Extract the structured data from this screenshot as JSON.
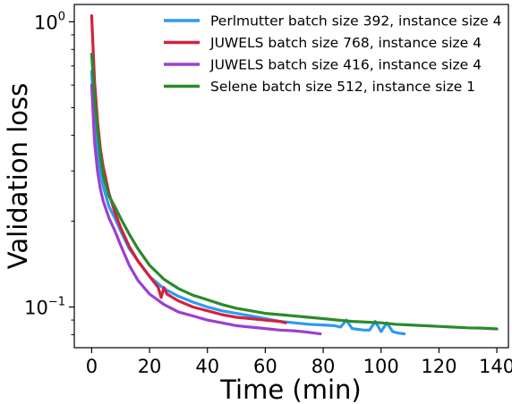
{
  "chart_data": {
    "type": "line",
    "xlabel": "Time (min)",
    "ylabel": "Validation loss",
    "yscale": "log",
    "xlim": [
      -6,
      144
    ],
    "ylim": [
      0.072,
      1.15
    ],
    "xticks": [
      0,
      20,
      40,
      60,
      80,
      100,
      120,
      140
    ],
    "xtick_labels": [
      "0",
      "20",
      "40",
      "60",
      "80",
      "100",
      "120",
      "140"
    ],
    "yticks": [
      {
        "value": 1,
        "base": "10",
        "exp": "0"
      },
      {
        "value": 0.1,
        "base": "10",
        "exp": "−1"
      }
    ],
    "grid": false,
    "legend_position": "top-right",
    "series": [
      {
        "name": "Perlmutter batch size 392, instance size 4",
        "color": "#2e9af0",
        "x": [
          0,
          1,
          2,
          3,
          4,
          6,
          8,
          10,
          13,
          16,
          20,
          25,
          30,
          35,
          40,
          45,
          50,
          55,
          60,
          65,
          70,
          75,
          80,
          84,
          86,
          88,
          90,
          92,
          94,
          96,
          98,
          100,
          102,
          104,
          106,
          108
        ],
        "y": [
          0.67,
          0.45,
          0.36,
          0.3,
          0.265,
          0.225,
          0.205,
          0.185,
          0.16,
          0.145,
          0.128,
          0.116,
          0.109,
          0.104,
          0.1,
          0.097,
          0.095,
          0.093,
          0.091,
          0.089,
          0.088,
          0.087,
          0.0865,
          0.086,
          0.085,
          0.09,
          0.084,
          0.0835,
          0.083,
          0.083,
          0.089,
          0.082,
          0.088,
          0.082,
          0.081,
          0.0805
        ]
      },
      {
        "name": "JUWELS batch size 768, instance size 4",
        "color": "#d3203e",
        "x": [
          0,
          1,
          2,
          3,
          4,
          6,
          8,
          10,
          13,
          16,
          20,
          23,
          24,
          25,
          26,
          30,
          35,
          40,
          45,
          50,
          55,
          60,
          65,
          67
        ],
        "y": [
          1.05,
          0.62,
          0.45,
          0.36,
          0.31,
          0.25,
          0.215,
          0.19,
          0.163,
          0.145,
          0.128,
          0.117,
          0.108,
          0.117,
          0.111,
          0.105,
          0.1,
          0.097,
          0.094,
          0.092,
          0.091,
          0.09,
          0.089,
          0.088
        ]
      },
      {
        "name": "JUWELS batch size 416, instance size 4",
        "color": "#9b40cf",
        "x": [
          0,
          1,
          2,
          3,
          4,
          6,
          8,
          10,
          13,
          16,
          20,
          25,
          30,
          35,
          40,
          45,
          50,
          55,
          60,
          65,
          70,
          75,
          79
        ],
        "y": [
          0.6,
          0.38,
          0.3,
          0.26,
          0.235,
          0.205,
          0.185,
          0.165,
          0.14,
          0.124,
          0.111,
          0.102,
          0.096,
          0.093,
          0.09,
          0.088,
          0.086,
          0.085,
          0.084,
          0.083,
          0.0825,
          0.0815,
          0.0805
        ]
      },
      {
        "name": "Selene batch size 512, instance size 1",
        "color": "#2b8a2b",
        "x": [
          0,
          1,
          2,
          3,
          4,
          6,
          8,
          10,
          13,
          16,
          20,
          25,
          30,
          35,
          40,
          45,
          50,
          55,
          60,
          65,
          70,
          75,
          80,
          85,
          90,
          95,
          100,
          105,
          110,
          115,
          120,
          125,
          130,
          135,
          140
        ],
        "y": [
          0.77,
          0.55,
          0.42,
          0.34,
          0.29,
          0.245,
          0.225,
          0.205,
          0.18,
          0.16,
          0.14,
          0.125,
          0.116,
          0.11,
          0.106,
          0.102,
          0.099,
          0.097,
          0.095,
          0.094,
          0.093,
          0.092,
          0.091,
          0.09,
          0.089,
          0.0885,
          0.088,
          0.087,
          0.0865,
          0.086,
          0.0855,
          0.085,
          0.0845,
          0.0843,
          0.0838
        ]
      }
    ]
  }
}
